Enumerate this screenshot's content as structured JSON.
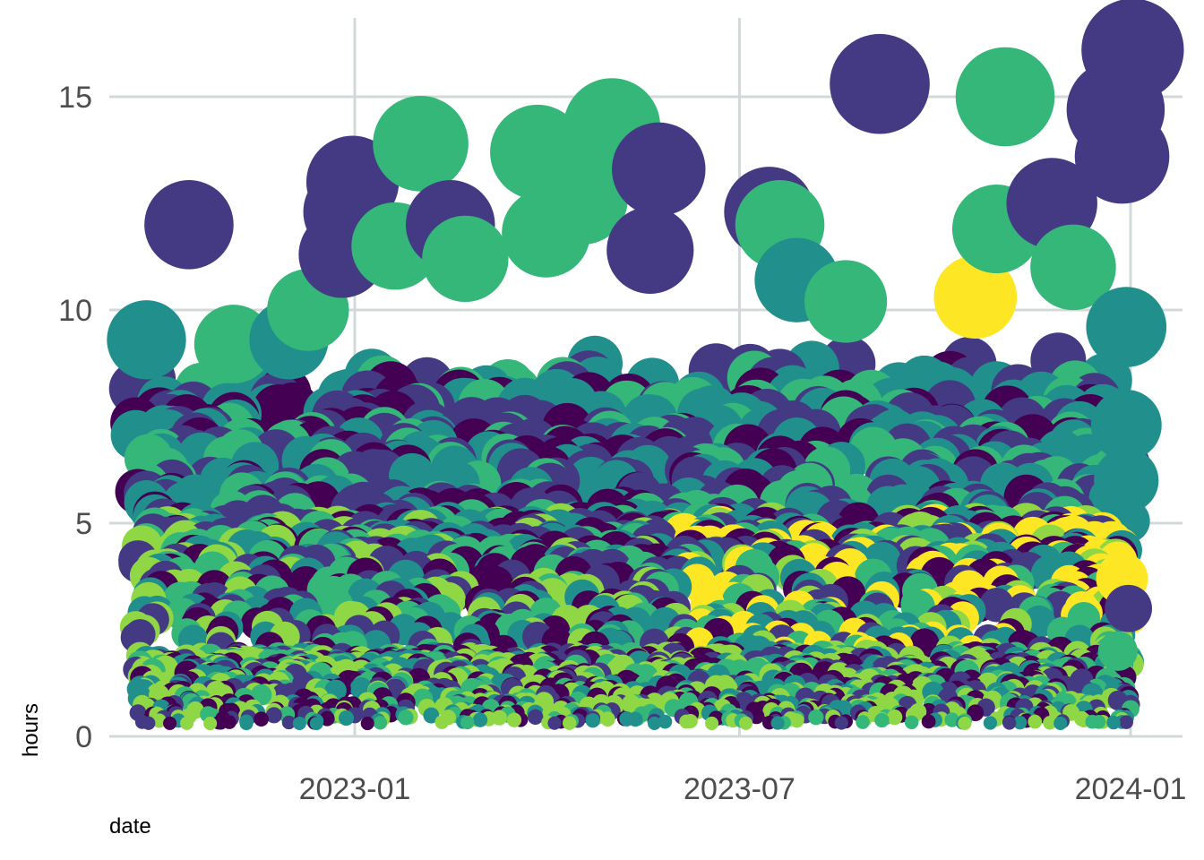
{
  "chart_data": {
    "type": "scatter",
    "xlabel": "date",
    "ylabel": "hours",
    "x_range": [
      "2022-09-10",
      "2024-01-10"
    ],
    "y_range": [
      0,
      16.5
    ],
    "x_ticks": [
      {
        "date": "2023-01-01",
        "label": "2023-01"
      },
      {
        "date": "2023-07-01",
        "label": "2023-07"
      },
      {
        "date": "2024-01-01",
        "label": "2024-01"
      }
    ],
    "y_ticks": [
      0,
      5,
      10,
      15
    ],
    "grid": true,
    "legend": "none",
    "palette": [
      "#440154",
      "#443a83",
      "#21908d",
      "#35b779",
      "#8fd744",
      "#fde725"
    ],
    "size_encodes": "hours",
    "dense_cloud": {
      "description_only": false,
      "date_start": "2022-09-20",
      "date_end": "2024-01-01",
      "min_hours": 0.3,
      "max_hours": 10
    },
    "highlighted_points": [
      {
        "date": "2022-10-15",
        "hours": 12.0,
        "color": "#443a83"
      },
      {
        "date": "2022-09-25",
        "hours": 9.3,
        "color": "#21908d"
      },
      {
        "date": "2022-11-05",
        "hours": 9.2,
        "color": "#35b779"
      },
      {
        "date": "2022-12-01",
        "hours": 9.3,
        "color": "#21908d"
      },
      {
        "date": "2022-12-10",
        "hours": 10.0,
        "color": "#35b779"
      },
      {
        "date": "2022-12-31",
        "hours": 13.0,
        "color": "#443a83"
      },
      {
        "date": "2022-12-29",
        "hours": 12.3,
        "color": "#443a83"
      },
      {
        "date": "2022-12-26",
        "hours": 11.3,
        "color": "#443a83"
      },
      {
        "date": "2023-01-20",
        "hours": 11.5,
        "color": "#35b779"
      },
      {
        "date": "2023-02-01",
        "hours": 13.9,
        "color": "#35b779"
      },
      {
        "date": "2023-02-15",
        "hours": 12.0,
        "color": "#443a83"
      },
      {
        "date": "2023-02-22",
        "hours": 11.2,
        "color": "#35b779"
      },
      {
        "date": "2023-03-28",
        "hours": 13.7,
        "color": "#35b779"
      },
      {
        "date": "2023-04-01",
        "hours": 11.8,
        "color": "#35b779"
      },
      {
        "date": "2023-04-18",
        "hours": 12.6,
        "color": "#35b779"
      },
      {
        "date": "2023-05-02",
        "hours": 14.3,
        "color": "#35b779"
      },
      {
        "date": "2023-05-24",
        "hours": 13.3,
        "color": "#443a83"
      },
      {
        "date": "2023-05-20",
        "hours": 11.4,
        "color": "#443a83"
      },
      {
        "date": "2023-07-15",
        "hours": 12.3,
        "color": "#443a83"
      },
      {
        "date": "2023-07-20",
        "hours": 12.0,
        "color": "#35b779"
      },
      {
        "date": "2023-07-28",
        "hours": 10.7,
        "color": "#21908d"
      },
      {
        "date": "2023-08-20",
        "hours": 10.2,
        "color": "#35b779"
      },
      {
        "date": "2023-09-05",
        "hours": 15.3,
        "color": "#443a83"
      },
      {
        "date": "2023-10-20",
        "hours": 10.3,
        "color": "#fde725"
      },
      {
        "date": "2023-10-30",
        "hours": 11.9,
        "color": "#35b779"
      },
      {
        "date": "2023-11-03",
        "hours": 15.0,
        "color": "#35b779"
      },
      {
        "date": "2023-11-25",
        "hours": 12.5,
        "color": "#443a83"
      },
      {
        "date": "2023-12-05",
        "hours": 11.0,
        "color": "#35b779"
      },
      {
        "date": "2023-12-25",
        "hours": 14.7,
        "color": "#443a83"
      },
      {
        "date": "2023-12-28",
        "hours": 13.6,
        "color": "#443a83"
      },
      {
        "date": "2024-01-02",
        "hours": 16.1,
        "color": "#443a83"
      },
      {
        "date": "2023-12-30",
        "hours": 9.6,
        "color": "#21908d"
      },
      {
        "date": "2023-12-30",
        "hours": 7.3,
        "color": "#21908d"
      },
      {
        "date": "2023-12-30",
        "hours": 6.0,
        "color": "#21908d"
      },
      {
        "date": "2023-12-28",
        "hours": 3.7,
        "color": "#fde725"
      },
      {
        "date": "2023-12-31",
        "hours": 3.0,
        "color": "#443a83"
      },
      {
        "date": "2023-12-26",
        "hours": 2.0,
        "color": "#35b779"
      }
    ]
  }
}
